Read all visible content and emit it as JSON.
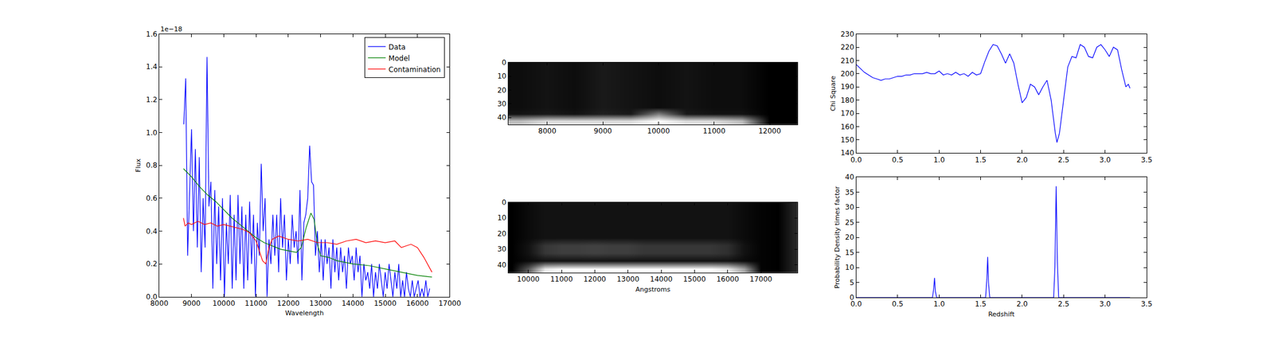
{
  "chart_data": [
    {
      "type": "line",
      "x_label": "Wavelength",
      "y_label": "Flux",
      "annotations": [
        {
          "text": "1e−18"
        }
      ],
      "legend": "upper right",
      "grid": false,
      "xlim": [
        8000,
        17000
      ],
      "xticks": [
        8000,
        9000,
        10000,
        11000,
        12000,
        13000,
        14000,
        15000,
        16000,
        17000
      ],
      "ylim": [
        0,
        1.6
      ],
      "yticks": [
        {
          "value": 0,
          "label": "0.0"
        },
        0.2,
        0.4,
        0.6,
        0.8,
        {
          "value": 1,
          "label": "1.0"
        },
        1.2,
        1.4,
        1.6
      ],
      "series": [
        {
          "name": "Data",
          "color": "#0000ff",
          "x": [
            8760,
            8820,
            8880,
            8940,
            9000,
            9060,
            9120,
            9180,
            9240,
            9300,
            9360,
            9420,
            9480,
            9540,
            9600,
            9660,
            9720,
            9780,
            9840,
            9900,
            9960,
            10020,
            10080,
            10140,
            10200,
            10260,
            10320,
            10380,
            10440,
            10500,
            10560,
            10620,
            10680,
            10740,
            10800,
            10860,
            10920,
            10980,
            11040,
            11100,
            11160,
            11220,
            11280,
            11340,
            11400,
            11460,
            11520,
            11580,
            11640,
            11700,
            11760,
            11820,
            11880,
            11940,
            12000,
            12060,
            12120,
            12180,
            12240,
            12300,
            12360,
            12420,
            12480,
            12540,
            12600,
            12660,
            12720,
            12780,
            12840,
            12900,
            12960,
            13020,
            13080,
            13140,
            13200,
            13260,
            13320,
            13380,
            13440,
            13500,
            13560,
            13620,
            13680,
            13740,
            13800,
            13860,
            13920,
            13980,
            14040,
            14100,
            14160,
            14220,
            14280,
            14340,
            14400,
            14460,
            14520,
            14580,
            14640,
            14700,
            14760,
            14820,
            14880,
            14940,
            15000,
            15060,
            15120,
            15180,
            15240,
            15300,
            15360,
            15420,
            15480,
            15540,
            15600,
            15660,
            15720,
            15780,
            15840,
            15900,
            15960,
            16020,
            16080,
            16140,
            16200,
            16260,
            16320,
            16380
          ],
          "values": [
            1.05,
            1.33,
            0.25,
            0.6,
            1.02,
            0.4,
            0.9,
            0.3,
            0.85,
            0.15,
            0.6,
            0.3,
            1.46,
            0.55,
            0.7,
            0.05,
            0.65,
            0.2,
            0.55,
            0.1,
            0.6,
            0.0,
            0.45,
            0.2,
            0.62,
            0.05,
            0.5,
            0.1,
            0.62,
            0.2,
            0.55,
            0.05,
            0.5,
            0.1,
            0.58,
            0.2,
            0.5,
            0.0,
            0.45,
            0.25,
            0.81,
            0.4,
            0.6,
            0.0,
            0.35,
            0.2,
            0.5,
            0.25,
            0.5,
            0.15,
            0.6,
            0.3,
            0.5,
            0.1,
            0.35,
            0.2,
            0.5,
            0.3,
            0.4,
            0.2,
            0.65,
            0.1,
            0.45,
            0.5,
            0.6,
            0.92,
            0.7,
            0.68,
            0.25,
            0.4,
            0.15,
            0.35,
            0.1,
            0.35,
            0.2,
            0.3,
            0.05,
            0.35,
            0.15,
            0.3,
            0.1,
            0.3,
            0.15,
            0.25,
            0.05,
            0.3,
            0.2,
            0.25,
            0.1,
            0.3,
            0.15,
            0.25,
            0.0,
            0.2,
            0.1,
            0.15,
            0.05,
            0.2,
            0.0,
            0.15,
            0.05,
            0.2,
            0.1,
            0.0,
            0.15,
            0.05,
            0.2,
            0.1,
            0.0,
            0.15,
            0.05,
            0.2,
            0.0,
            0.1,
            0.0,
            0.15,
            0.05,
            0.0,
            0.1,
            0.0,
            0.05,
            0.1,
            0.0,
            0.05,
            0.0,
            0.1,
            0.0,
            0.05
          ]
        },
        {
          "name": "Model",
          "color": "#008000",
          "x": [
            8750,
            9000,
            9250,
            9500,
            9750,
            10000,
            10250,
            10500,
            10750,
            11000,
            11250,
            11500,
            11750,
            12000,
            12250,
            12400,
            12550,
            12700,
            12800,
            12900,
            13000,
            13250,
            13500,
            14000,
            14500,
            15000,
            15500,
            16000,
            16450
          ],
          "values": [
            0.78,
            0.73,
            0.67,
            0.62,
            0.58,
            0.53,
            0.48,
            0.44,
            0.4,
            0.36,
            0.33,
            0.31,
            0.29,
            0.28,
            0.27,
            0.3,
            0.42,
            0.51,
            0.47,
            0.32,
            0.25,
            0.24,
            0.22,
            0.2,
            0.19,
            0.17,
            0.15,
            0.13,
            0.12
          ]
        },
        {
          "name": "Contamination",
          "color": "#ff0000",
          "x": [
            8750,
            8800,
            8900,
            9000,
            9200,
            9400,
            9600,
            9800,
            10000,
            10200,
            10400,
            10600,
            10800,
            11000,
            11100,
            11200,
            11300,
            11400,
            11500,
            11700,
            12000,
            12300,
            12600,
            12900,
            13200,
            13500,
            13800,
            14100,
            14400,
            14700,
            15000,
            15300,
            15500,
            15800,
            16000,
            16200,
            16450
          ],
          "values": [
            0.48,
            0.43,
            0.45,
            0.44,
            0.46,
            0.44,
            0.45,
            0.43,
            0.44,
            0.43,
            0.42,
            0.41,
            0.39,
            0.34,
            0.28,
            0.22,
            0.2,
            0.3,
            0.35,
            0.37,
            0.35,
            0.34,
            0.35,
            0.33,
            0.33,
            0.32,
            0.34,
            0.35,
            0.33,
            0.34,
            0.33,
            0.34,
            0.3,
            0.32,
            0.3,
            0.24,
            0.15
          ]
        }
      ]
    },
    {
      "type": "heatmap",
      "xlim": [
        7300,
        12500
      ],
      "xticks": [
        8000,
        9000,
        10000,
        11000,
        12000
      ],
      "ylim": [
        45,
        0
      ],
      "yticks": [
        0,
        10,
        20,
        30,
        40
      ],
      "x": [
        7500,
        8000,
        8500,
        9000,
        9500,
        10000,
        10500,
        11000,
        11500,
        12000,
        12500
      ],
      "y": [
        2.5,
        7.5,
        12.5,
        17.5,
        22.5,
        27.5,
        32.5,
        37.5,
        42.5
      ],
      "cells": [
        [
          0.12,
          0.13,
          0.12,
          0.14,
          0.13,
          0.12,
          0.13,
          0.12,
          0.12,
          0.1,
          0.1
        ],
        [
          0.12,
          0.13,
          0.12,
          0.14,
          0.13,
          0.12,
          0.13,
          0.12,
          0.12,
          0.1,
          0.1
        ],
        [
          0.12,
          0.13,
          0.12,
          0.14,
          0.13,
          0.12,
          0.13,
          0.12,
          0.12,
          0.1,
          0.1
        ],
        [
          0.12,
          0.13,
          0.12,
          0.14,
          0.13,
          0.12,
          0.13,
          0.12,
          0.12,
          0.1,
          0.1
        ],
        [
          0.12,
          0.13,
          0.12,
          0.14,
          0.13,
          0.12,
          0.13,
          0.12,
          0.12,
          0.1,
          0.1
        ],
        [
          0.12,
          0.13,
          0.12,
          0.14,
          0.13,
          0.12,
          0.13,
          0.12,
          0.12,
          0.1,
          0.1
        ],
        [
          0.12,
          0.13,
          0.12,
          0.14,
          0.13,
          0.12,
          0.13,
          0.12,
          0.12,
          0.1,
          0.1
        ],
        [
          0.13,
          0.14,
          0.13,
          0.15,
          0.14,
          0.3,
          0.14,
          0.13,
          0.13,
          0.1,
          0.1
        ],
        [
          0.4,
          0.45,
          0.45,
          0.45,
          0.45,
          0.5,
          0.45,
          0.45,
          0.4,
          0.1,
          0.1
        ]
      ]
    },
    {
      "type": "heatmap",
      "x_label": "Angstroms",
      "xlim": [
        9400,
        18100
      ],
      "xticks": [
        10000,
        11000,
        12000,
        13000,
        14000,
        15000,
        16000,
        17000
      ],
      "ylim": [
        45,
        0
      ],
      "yticks": [
        0,
        10,
        20,
        30,
        40
      ],
      "x": [
        9500,
        10000,
        10500,
        11000,
        11500,
        12000,
        12500,
        13000,
        13500,
        14000,
        14500,
        15000,
        15500,
        16000,
        16500,
        17000,
        17500,
        18000
      ],
      "y": [
        2.5,
        7.5,
        12.5,
        17.5,
        22.5,
        27.5,
        32.5,
        37.5,
        42.5
      ],
      "cells": [
        [
          0.15,
          0.18,
          0.2,
          0.2,
          0.2,
          0.2,
          0.2,
          0.2,
          0.2,
          0.2,
          0.2,
          0.2,
          0.2,
          0.2,
          0.18,
          0.16,
          0.15,
          0.25
        ],
        [
          0.15,
          0.18,
          0.2,
          0.2,
          0.2,
          0.2,
          0.2,
          0.2,
          0.2,
          0.2,
          0.2,
          0.2,
          0.2,
          0.2,
          0.18,
          0.16,
          0.15,
          0.25
        ],
        [
          0.15,
          0.18,
          0.2,
          0.2,
          0.2,
          0.2,
          0.2,
          0.2,
          0.2,
          0.2,
          0.2,
          0.2,
          0.2,
          0.2,
          0.18,
          0.16,
          0.15,
          0.25
        ],
        [
          0.15,
          0.18,
          0.2,
          0.2,
          0.2,
          0.2,
          0.2,
          0.2,
          0.2,
          0.2,
          0.2,
          0.2,
          0.2,
          0.2,
          0.18,
          0.16,
          0.15,
          0.25
        ],
        [
          0.15,
          0.18,
          0.2,
          0.2,
          0.2,
          0.2,
          0.2,
          0.2,
          0.2,
          0.2,
          0.2,
          0.2,
          0.2,
          0.2,
          0.18,
          0.16,
          0.15,
          0.25
        ],
        [
          0.15,
          0.2,
          0.3,
          0.32,
          0.32,
          0.33,
          0.32,
          0.32,
          0.3,
          0.3,
          0.3,
          0.3,
          0.3,
          0.28,
          0.2,
          0.16,
          0.15,
          0.25
        ],
        [
          0.15,
          0.2,
          0.3,
          0.32,
          0.32,
          0.33,
          0.32,
          0.32,
          0.3,
          0.3,
          0.3,
          0.3,
          0.3,
          0.28,
          0.2,
          0.16,
          0.15,
          0.25
        ],
        [
          0.15,
          0.18,
          0.2,
          0.2,
          0.2,
          0.2,
          0.2,
          0.2,
          0.2,
          0.2,
          0.2,
          0.2,
          0.2,
          0.2,
          0.18,
          0.16,
          0.15,
          0.25
        ],
        [
          0.15,
          0.4,
          0.8,
          0.85,
          0.85,
          0.85,
          0.85,
          0.85,
          0.85,
          0.85,
          0.85,
          0.85,
          0.85,
          0.8,
          0.6,
          0.16,
          0.15,
          0.25
        ]
      ]
    },
    {
      "type": "line",
      "y_label": "Chi Square",
      "grid": false,
      "xlim": [
        0,
        3.5
      ],
      "xticks": [
        {
          "value": 0,
          "label": "0.0"
        },
        0.5,
        {
          "value": 1,
          "label": "1.0"
        },
        1.5,
        {
          "value": 2,
          "label": "2.0"
        },
        2.5,
        {
          "value": 3,
          "label": "3.0"
        },
        3.5
      ],
      "ylim": [
        140,
        230
      ],
      "yticks": [
        140,
        150,
        160,
        170,
        180,
        190,
        200,
        210,
        220,
        230
      ],
      "series": [
        {
          "color": "#0000ff",
          "x": [
            0,
            0.05,
            0.1,
            0.15,
            0.2,
            0.25,
            0.3,
            0.35,
            0.4,
            0.45,
            0.5,
            0.55,
            0.6,
            0.65,
            0.7,
            0.75,
            0.8,
            0.85,
            0.9,
            0.95,
            1.0,
            1.05,
            1.1,
            1.15,
            1.2,
            1.25,
            1.3,
            1.35,
            1.4,
            1.45,
            1.5,
            1.55,
            1.6,
            1.65,
            1.7,
            1.75,
            1.8,
            1.85,
            1.9,
            1.95,
            2.0,
            2.05,
            2.1,
            2.15,
            2.2,
            2.25,
            2.3,
            2.35,
            2.4,
            2.42,
            2.45,
            2.5,
            2.55,
            2.6,
            2.65,
            2.7,
            2.75,
            2.8,
            2.85,
            2.9,
            2.95,
            3.0,
            3.05,
            3.1,
            3.15,
            3.2,
            3.25,
            3.28,
            3.3
          ],
          "values": [
            207,
            204,
            201,
            199,
            197,
            196,
            195,
            196,
            196,
            197,
            198,
            198,
            199,
            199,
            200,
            200,
            200,
            201,
            200,
            200,
            202,
            199,
            200,
            199,
            201,
            199,
            200,
            198,
            201,
            199,
            200,
            209,
            217,
            222,
            221,
            215,
            208,
            215,
            208,
            192,
            178,
            182,
            192,
            190,
            184,
            190,
            195,
            180,
            155,
            148,
            155,
            180,
            205,
            213,
            212,
            222,
            220,
            213,
            212,
            220,
            222,
            218,
            213,
            220,
            218,
            203,
            190,
            192,
            189
          ]
        }
      ]
    },
    {
      "type": "line",
      "x_label": "Redshift",
      "y_label": "Probability Density times factor",
      "grid": false,
      "xlim": [
        0,
        3.5
      ],
      "xticks": [
        {
          "value": 0,
          "label": "0.0"
        },
        0.5,
        {
          "value": 1,
          "label": "1.0"
        },
        1.5,
        {
          "value": 2,
          "label": "2.0"
        },
        2.5,
        {
          "value": 3,
          "label": "3.0"
        },
        3.5
      ],
      "ylim": [
        0,
        40
      ],
      "yticks": [
        0,
        5,
        10,
        15,
        20,
        25,
        30,
        35,
        40
      ],
      "series": [
        {
          "color": "#0000ff",
          "x": [
            0,
            0.92,
            0.935,
            0.945,
            0.955,
            0.97,
            1.56,
            1.575,
            1.585,
            1.595,
            1.61,
            2.38,
            2.395,
            2.41,
            2.425,
            2.44,
            3.3
          ],
          "values": [
            0,
            0,
            3,
            6.5,
            2,
            0,
            0,
            6,
            13.5,
            5,
            0,
            0,
            10,
            37,
            12,
            0,
            0
          ]
        }
      ]
    }
  ]
}
